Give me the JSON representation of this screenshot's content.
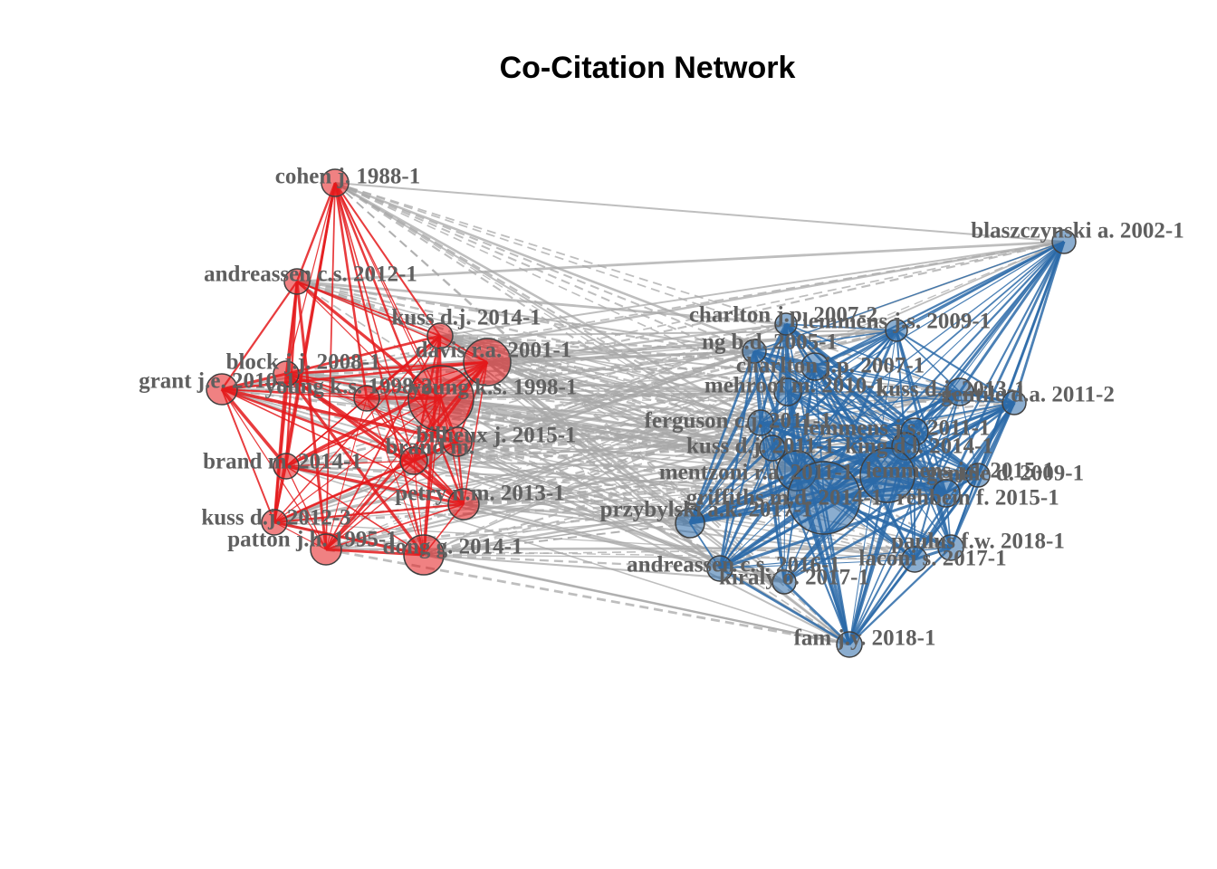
{
  "title": "Co-Citation Network",
  "colors": {
    "cluster1": "#e41a1c",
    "cluster2": "#2c6aa8",
    "between": "#a8a8a8",
    "label": "#5f5f5f"
  },
  "clusters": [
    {
      "id": "red",
      "nodes": [
        "cohen j. 1988-1",
        "andreassen c.s. 2012-1",
        "kuss d.j. 2014-1",
        "davis r.a. 2001-1",
        "block j.j. 2008-1",
        "grant j.e. 2010-1",
        "young k.s. 1998-2",
        "young k.s. 1998-1",
        "billieux j. 2015-1",
        "brand m. 2014-1",
        "brand m.",
        "petry n.m. 2013-1",
        "kuss d.j. 2012-3",
        "patton j.h. 1995-1",
        "dong g. 2014-1"
      ]
    },
    {
      "id": "blue",
      "nodes": [
        "blaszczynski a. 2002-1",
        "charlton j.p. 2007-2",
        "lemmens j.s. 2009-1",
        "ng b.d. 2005-1",
        "charlton j.p. 2007-1",
        "mehroof m. 2010-1",
        "kuss d.j. 2013-1",
        "gentile d.a. 2011-2",
        "ferguson c.j. 2011-1",
        "lemmens j.s. 2011-1",
        "king d.l. 2014-1",
        "kuss d.j. 2011-1",
        "mentzoni r.a. 2011-1",
        "lemmens j.s. 2015-1",
        "gentile d. 2009-1",
        "griffiths m.d. 2014-1",
        "rehbein f. 2015-1",
        "przybylski a.k. 2017-1",
        "andreassen c.s. 2016-1",
        "kiraly o. 2017-1",
        "paulus f.w. 2018-1",
        "laconi s. 2017-1",
        "fam j.y. 2018-1"
      ]
    }
  ]
}
